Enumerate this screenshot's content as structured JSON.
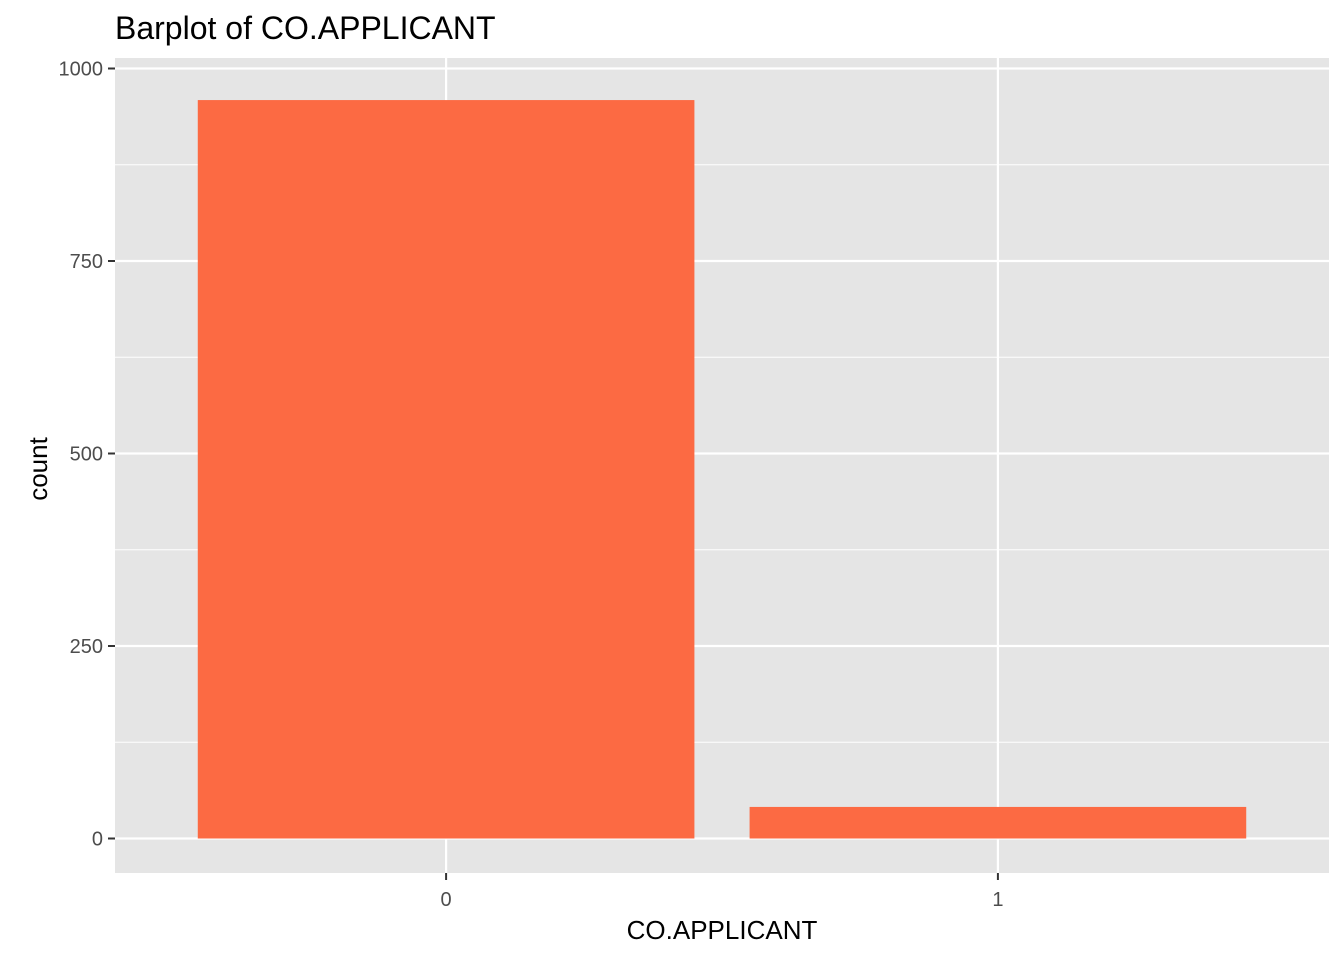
{
  "chart_data": {
    "type": "bar",
    "title": "Barplot of CO.APPLICANT",
    "xlabel": "CO.APPLICANT",
    "ylabel": "count",
    "categories": [
      "0",
      "1"
    ],
    "values": [
      959,
      41
    ],
    "ylim": [
      0,
      1000
    ],
    "y_ticks": [
      0,
      250,
      500,
      750,
      1000
    ],
    "y_tick_labels": [
      "0",
      "250",
      "500",
      "750",
      "1000"
    ],
    "grid": true,
    "legend": "none",
    "colors": {
      "bar": "#fc6a43",
      "panel": "#e5e5e5",
      "grid": "#ffffff",
      "tick_label": "#4d4d4d",
      "tick": "#333333"
    }
  }
}
